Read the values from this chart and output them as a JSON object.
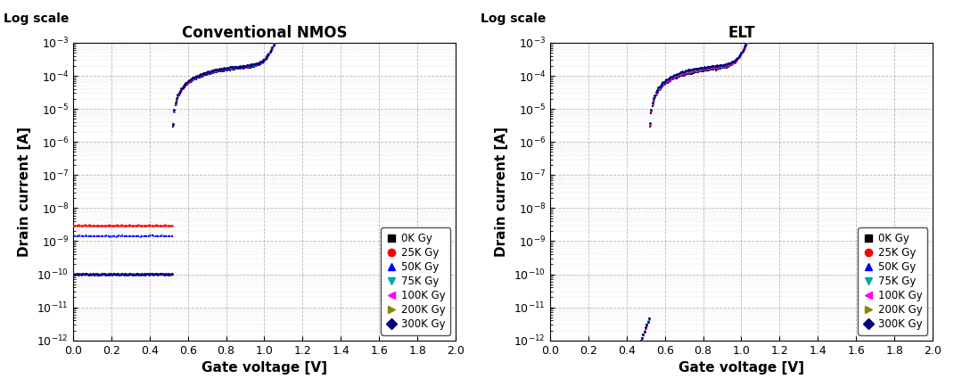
{
  "left_title": "Conventional NMOS",
  "right_title": "ELT",
  "log_scale_label": "Log scale",
  "xlabel": "Gate voltage [V]",
  "ylabel": "Drain current [A]",
  "xlim": [
    0.0,
    2.0
  ],
  "ylim_log": [
    1e-12,
    0.001
  ],
  "xticks": [
    0.0,
    0.2,
    0.4,
    0.6,
    0.8,
    1.0,
    1.2,
    1.4,
    1.6,
    1.8,
    2.0
  ],
  "series_conv": [
    {
      "label": "0K Gy",
      "color": "#000000",
      "marker": "s",
      "vth": 0.52,
      "ioff": 1e-12,
      "ion": 0.00023,
      "ss": 0.06,
      "ileak": 0.0
    },
    {
      "label": "25K Gy",
      "color": "#ff0000",
      "marker": "o",
      "vth": 0.52,
      "ioff": 1e-12,
      "ion": 0.00025,
      "ss": 0.06,
      "ileak": 3e-09
    },
    {
      "label": "50K Gy",
      "color": "#0000ff",
      "marker": "^",
      "vth": 0.52,
      "ioff": 1e-12,
      "ion": 0.00025,
      "ss": 0.06,
      "ileak": 1.5e-09
    },
    {
      "label": "75K Gy",
      "color": "#00aaaa",
      "marker": "v",
      "vth": 0.52,
      "ioff": 1e-12,
      "ion": 0.00025,
      "ss": 0.06,
      "ileak": 1e-10
    },
    {
      "label": "100K Gy",
      "color": "#ff00ff",
      "marker": "<",
      "vth": 0.52,
      "ioff": 1e-12,
      "ion": 0.00027,
      "ss": 0.06,
      "ileak": 1e-10
    },
    {
      "label": "200K Gy",
      "color": "#888800",
      "marker": ">",
      "vth": 0.52,
      "ioff": 1e-12,
      "ion": 0.00027,
      "ss": 0.06,
      "ileak": 1e-10
    },
    {
      "label": "300K Gy",
      "color": "#000080",
      "marker": "D",
      "vth": 0.52,
      "ioff": 1e-12,
      "ion": 0.00027,
      "ss": 0.06,
      "ileak": 1e-10
    }
  ],
  "series_elt": [
    {
      "label": "0K Gy",
      "color": "#000000",
      "marker": "s",
      "vth": 0.52,
      "ioff": 5e-12,
      "ion": 0.00022,
      "ss": 0.062,
      "ileak": 0.0
    },
    {
      "label": "25K Gy",
      "color": "#ff0000",
      "marker": "o",
      "vth": 0.52,
      "ioff": 5e-12,
      "ion": 0.00024,
      "ss": 0.062,
      "ileak": 0.0
    },
    {
      "label": "50K Gy",
      "color": "#0000ff",
      "marker": "^",
      "vth": 0.52,
      "ioff": 5e-12,
      "ion": 0.00025,
      "ss": 0.062,
      "ileak": 0.0
    },
    {
      "label": "75K Gy",
      "color": "#00aaaa",
      "marker": "v",
      "vth": 0.52,
      "ioff": 5e-12,
      "ion": 0.00025,
      "ss": 0.062,
      "ileak": 0.0
    },
    {
      "label": "100K Gy",
      "color": "#ff00ff",
      "marker": "<",
      "vth": 0.52,
      "ioff": 5e-12,
      "ion": 0.00026,
      "ss": 0.062,
      "ileak": 0.0
    },
    {
      "label": "200K Gy",
      "color": "#888800",
      "marker": ">",
      "vth": 0.52,
      "ioff": 5e-12,
      "ion": 0.00027,
      "ss": 0.062,
      "ileak": 0.0
    },
    {
      "label": "300K Gy",
      "color": "#000080",
      "marker": "D",
      "vth": 0.52,
      "ioff": 5e-12,
      "ion": 0.00028,
      "ss": 0.062,
      "ileak": 0.0
    }
  ],
  "background_color": "#ffffff",
  "grid_color": "#aaaaaa"
}
